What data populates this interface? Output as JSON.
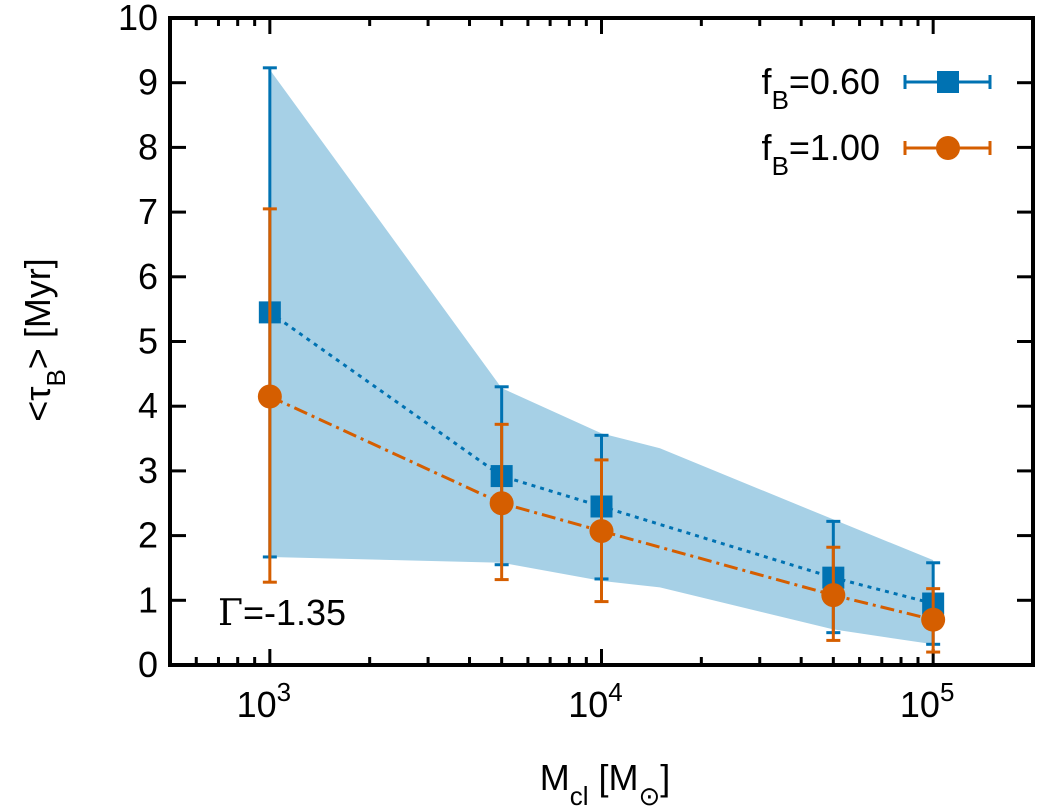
{
  "chart_data": {
    "type": "line",
    "title": "",
    "xscale": "log",
    "xlim": [
      500,
      200000
    ],
    "ylim": [
      0,
      10
    ],
    "xlabel": {
      "main": "M",
      "sub": "cl",
      "unit_open": "[M",
      "unit_sub": "⊙",
      "unit_close": "]"
    },
    "ylabel": {
      "open": "<τ",
      "sub": "B",
      "close": "> [Myr]"
    },
    "x": [
      1000,
      5000,
      10000,
      50000,
      100000
    ],
    "x_tick_labels": [
      {
        "value": 1000,
        "base": "10",
        "exp": "3"
      },
      {
        "value": 10000,
        "base": "10",
        "exp": "4"
      },
      {
        "value": 100000,
        "base": "10",
        "exp": "5"
      }
    ],
    "y_tick_labels": [
      "0",
      "1",
      "2",
      "3",
      "4",
      "5",
      "6",
      "7",
      "8",
      "9",
      "10"
    ],
    "series": [
      {
        "name": {
          "base": "f",
          "sub": "B",
          "rest": "=0.60"
        },
        "color": "#0072b2",
        "marker": "square",
        "linestyle": "dotted",
        "values": [
          5.45,
          2.92,
          2.45,
          1.35,
          0.95
        ],
        "err_low": [
          1.67,
          1.55,
          1.33,
          0.5,
          0.32
        ],
        "err_high": [
          9.23,
          4.3,
          3.55,
          2.22,
          1.58
        ]
      },
      {
        "name": {
          "base": "f",
          "sub": "B",
          "rest": "=1.00"
        },
        "color": "#d55e00",
        "marker": "circle",
        "linestyle": "dashdot",
        "values": [
          4.15,
          2.5,
          2.07,
          1.08,
          0.7
        ],
        "err_low": [
          1.28,
          1.32,
          0.98,
          0.38,
          0.2
        ],
        "err_high": [
          7.05,
          3.72,
          3.17,
          1.82,
          1.18
        ]
      }
    ],
    "band": {
      "color": "#a6d0e6",
      "x": [
        1000,
        5000,
        10000,
        15000,
        50000,
        100000
      ],
      "upper": [
        9.2,
        4.28,
        3.58,
        3.35,
        2.25,
        1.62
      ],
      "lower": [
        1.67,
        1.58,
        1.3,
        1.2,
        0.55,
        0.32
      ]
    },
    "annotation": {
      "symbol": "Γ",
      "text": "=-1.35"
    },
    "legend_position": "top-right"
  }
}
